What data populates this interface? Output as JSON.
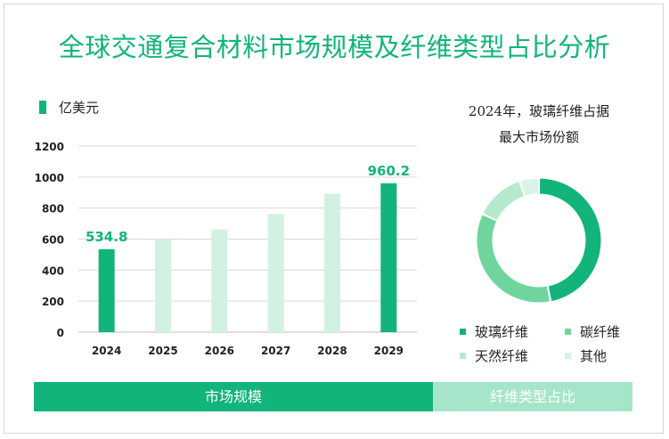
{
  "title": "全球交通复合材料市场规模及纤维类型占比分析",
  "bar_legend": "亿美元",
  "pie_title_line1": "2024年，玻璃纤维占据",
  "pie_title_line2": "最大市场份额",
  "footer": {
    "left_label": "市场规模",
    "right_label": "纤维类型占比"
  },
  "chart_data": [
    {
      "type": "bar",
      "categories": [
        "2024",
        "2025",
        "2026",
        "2027",
        "2028",
        "2029"
      ],
      "series": [
        {
          "name": "亿美元",
          "values": [
            534.8,
            600,
            662,
            762,
            892,
            960.2
          ]
        }
      ],
      "data_labels": [
        "534.8",
        "",
        "",
        "",
        "",
        "960.2"
      ],
      "highlight_indices": [
        0,
        5
      ],
      "yticks": [
        "0",
        "200",
        "400",
        "600",
        "800",
        "1000",
        "1200"
      ],
      "ylim": [
        0,
        1200
      ],
      "grid": true,
      "colors": {
        "highlight": "#12b47a",
        "normal": "#d2f1e1"
      }
    },
    {
      "type": "pie",
      "donut": true,
      "labels": [
        "玻璃纤维",
        "碳纤维",
        "天然纤维",
        "其他"
      ],
      "values": [
        47,
        35,
        13,
        5
      ],
      "colors": [
        "#12b47a",
        "#6fd59d",
        "#b4e9cc",
        "#d9f3e7"
      ]
    }
  ]
}
